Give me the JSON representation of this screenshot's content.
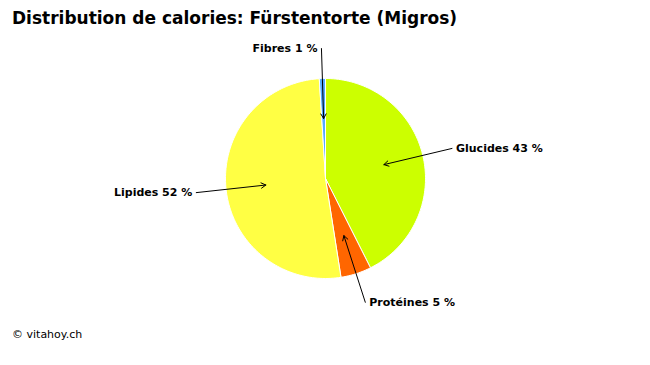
{
  "chart_data": {
    "type": "pie",
    "title": "Distribution de calories: Fürstentorte (Migros)",
    "categories": [
      "Glucides 43 %",
      "Protéines 5 %",
      "Lipides 52 %",
      "Fibres 1 %"
    ],
    "values": [
      43,
      5,
      52,
      1
    ],
    "colors": [
      "#CCFF00",
      "#FF6600",
      "#FFFF44",
      "#55AAFF"
    ],
    "annotations": [
      "© vitahoy.ch"
    ]
  }
}
